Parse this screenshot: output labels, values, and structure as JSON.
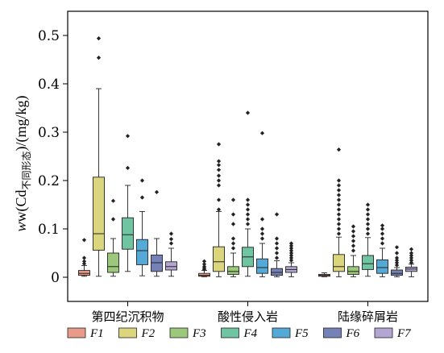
{
  "chart_data": {
    "type": "box",
    "ylabel": "w(Cd不同形态)/(mg/kg)",
    "ylabel_parts": {
      "main": "w(Cd",
      "sub": "不同形态",
      "tail": ")/(mg/kg)"
    },
    "ylim": [
      -0.05,
      0.55
    ],
    "yticks": [
      0,
      0.1,
      0.2,
      0.3,
      0.4,
      0.5
    ],
    "ytick_labels": [
      "0",
      "0.1",
      "0.2",
      "0.3",
      "0.4",
      "0.5"
    ],
    "categories": [
      "第四纪沉积物",
      "酸性侵入岩",
      "陆缘碎屑岩"
    ],
    "series": [
      {
        "name": "F1",
        "color": "#e89b88"
      },
      {
        "name": "F2",
        "color": "#dbd67e"
      },
      {
        "name": "F3",
        "color": "#9bc87a"
      },
      {
        "name": "F4",
        "color": "#6fc4a1"
      },
      {
        "name": "F5",
        "color": "#55a9d6"
      },
      {
        "name": "F6",
        "color": "#7582b8"
      },
      {
        "name": "F7",
        "color": "#b3a6d3"
      }
    ],
    "boxes": [
      [
        {
          "min": 0.002,
          "q1": 0.004,
          "median": 0.008,
          "q3": 0.014,
          "max": 0.024,
          "outliers": [
            0.028,
            0.033,
            0.04,
            0.077
          ]
        },
        {
          "min": 0.002,
          "q1": 0.056,
          "median": 0.09,
          "q3": 0.207,
          "max": 0.39,
          "outliers": [
            0.454,
            0.494
          ]
        },
        {
          "min": 0.002,
          "q1": 0.01,
          "median": 0.022,
          "q3": 0.05,
          "max": 0.08,
          "outliers": [
            0.12,
            0.158
          ]
        },
        {
          "min": 0.012,
          "q1": 0.058,
          "median": 0.088,
          "q3": 0.123,
          "max": 0.19,
          "outliers": [
            0.226,
            0.292
          ]
        },
        {
          "min": 0.003,
          "q1": 0.026,
          "median": 0.055,
          "q3": 0.078,
          "max": 0.136,
          "outliers": [
            0.165,
            0.2
          ]
        },
        {
          "min": 0.002,
          "q1": 0.012,
          "median": 0.03,
          "q3": 0.046,
          "max": 0.08,
          "outliers": [
            0.176
          ]
        },
        {
          "min": 0.002,
          "q1": 0.015,
          "median": 0.022,
          "q3": 0.032,
          "max": 0.06,
          "outliers": [
            0.07,
            0.079,
            0.09
          ]
        }
      ],
      [
        {
          "min": 0.001,
          "q1": 0.002,
          "median": 0.004,
          "q3": 0.008,
          "max": 0.014,
          "outliers": [
            0.016,
            0.019,
            0.022,
            0.027,
            0.033
          ]
        },
        {
          "min": 0.001,
          "q1": 0.012,
          "median": 0.032,
          "q3": 0.063,
          "max": 0.136,
          "outliers": [
            0.14,
            0.16,
            0.19,
            0.2,
            0.21,
            0.222,
            0.232,
            0.24,
            0.275
          ]
        },
        {
          "min": 0.001,
          "q1": 0.006,
          "median": 0.012,
          "q3": 0.022,
          "max": 0.05,
          "outliers": [
            0.06,
            0.07,
            0.08,
            0.11,
            0.13,
            0.16
          ]
        },
        {
          "min": 0.002,
          "q1": 0.022,
          "median": 0.042,
          "q3": 0.062,
          "max": 0.1,
          "outliers": [
            0.11,
            0.12,
            0.13,
            0.14,
            0.15,
            0.16,
            0.34
          ]
        },
        {
          "min": 0.001,
          "q1": 0.008,
          "median": 0.02,
          "q3": 0.038,
          "max": 0.07,
          "outliers": [
            0.08,
            0.09,
            0.1,
            0.12,
            0.298
          ]
        },
        {
          "min": 0.001,
          "q1": 0.004,
          "median": 0.01,
          "q3": 0.018,
          "max": 0.034,
          "outliers": [
            0.04,
            0.05,
            0.06,
            0.07,
            0.08,
            0.13
          ]
        },
        {
          "min": 0.001,
          "q1": 0.01,
          "median": 0.016,
          "q3": 0.022,
          "max": 0.03,
          "outliers": [
            0.035,
            0.04,
            0.045,
            0.05,
            0.055,
            0.06,
            0.065,
            0.07
          ]
        }
      ],
      [
        {
          "min": 0.001,
          "q1": 0.002,
          "median": 0.004,
          "q3": 0.006,
          "max": 0.009,
          "outliers": []
        },
        {
          "min": 0.001,
          "q1": 0.012,
          "median": 0.022,
          "q3": 0.047,
          "max": 0.083,
          "outliers": [
            0.09,
            0.1,
            0.11,
            0.12,
            0.13,
            0.14,
            0.15,
            0.16,
            0.17,
            0.18,
            0.19,
            0.2,
            0.264
          ]
        },
        {
          "min": 0.001,
          "q1": 0.006,
          "median": 0.012,
          "q3": 0.022,
          "max": 0.045,
          "outliers": [
            0.055,
            0.065,
            0.075,
            0.085,
            0.095,
            0.105
          ]
        },
        {
          "min": 0.002,
          "q1": 0.016,
          "median": 0.028,
          "q3": 0.045,
          "max": 0.082,
          "outliers": [
            0.09,
            0.1,
            0.11,
            0.12,
            0.13,
            0.14,
            0.15
          ]
        },
        {
          "min": 0.001,
          "q1": 0.008,
          "median": 0.02,
          "q3": 0.036,
          "max": 0.06,
          "outliers": [
            0.07,
            0.08,
            0.09,
            0.1,
            0.107
          ]
        },
        {
          "min": 0.001,
          "q1": 0.004,
          "median": 0.008,
          "q3": 0.015,
          "max": 0.02,
          "outliers": [
            0.025,
            0.03,
            0.035,
            0.04,
            0.05,
            0.062
          ]
        },
        {
          "min": 0.001,
          "q1": 0.012,
          "median": 0.017,
          "q3": 0.021,
          "max": 0.027,
          "outliers": [
            0.03,
            0.035,
            0.04,
            0.045,
            0.05,
            0.058
          ]
        }
      ]
    ],
    "legend_position": "bottom",
    "grid": false
  }
}
